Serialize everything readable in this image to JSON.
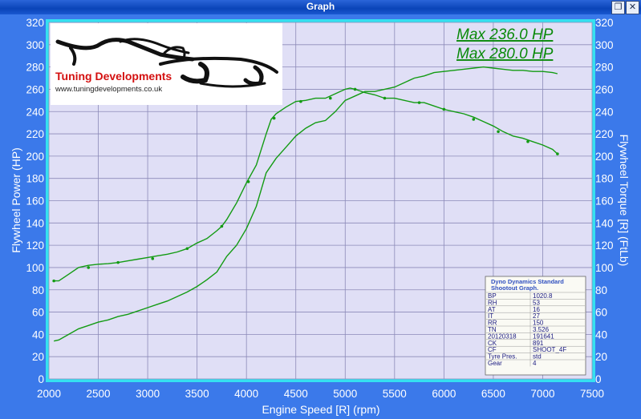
{
  "window": {
    "title": "Graph"
  },
  "logo": {
    "company": "Tuning Developments",
    "url": "www.tuningdevelopments.co.uk"
  },
  "max_labels": [
    "Max 236.0 HP",
    "Max 280.0 HP"
  ],
  "info_table": {
    "header": [
      "Dyno Dynamics Standard",
      "Shootout Graph."
    ],
    "rows": [
      [
        "BP",
        "1020.8"
      ],
      [
        "RH",
        "53"
      ],
      [
        "AT",
        "16"
      ],
      [
        "IT",
        "27"
      ],
      [
        "RR",
        "150"
      ],
      [
        "TN",
        "3.526"
      ],
      [
        "20120318",
        "191641"
      ],
      [
        "CK",
        "891"
      ],
      [
        "CF",
        "SHOOT_4F"
      ],
      [
        "Tyre Pres.",
        "std"
      ],
      [
        "Gear",
        "4"
      ]
    ]
  },
  "colors": {
    "plot_bg": "#e0dff6",
    "grid": "#8c8ab8",
    "curve": "#139b13",
    "frame": "#3b79ea"
  },
  "chart_data": {
    "type": "line",
    "xlabel": "Engine Speed [R] (rpm)",
    "ylabel": "Flywheel Power (HP)",
    "ylabel_right": "Flywheel Torque [R] (FtLb)",
    "xlim": [
      2000,
      7500
    ],
    "ylim": [
      0,
      320
    ],
    "ylim_right": [
      0,
      320
    ],
    "xticks": [
      2000,
      2500,
      3000,
      3500,
      4000,
      4500,
      5000,
      5500,
      6000,
      6500,
      7000,
      7500
    ],
    "yticks": [
      0,
      20,
      40,
      60,
      80,
      100,
      120,
      140,
      160,
      180,
      200,
      220,
      240,
      260,
      280,
      300,
      320
    ],
    "grid": true,
    "series": [
      {
        "x": [
          2050,
          2100,
          2200,
          2300,
          2400,
          2500,
          2600,
          2700,
          2800,
          2900,
          3000,
          3100,
          3200,
          3300,
          3400,
          3500,
          3600,
          3700,
          3750,
          3800,
          3900,
          4000,
          4100,
          4200,
          4250,
          4300,
          4400,
          4500,
          4600,
          4700,
          4800,
          4900,
          5000,
          5050,
          5100,
          5200,
          5300,
          5400,
          5500,
          5600,
          5700,
          5800,
          5900,
          6000,
          6100,
          6200,
          6300,
          6400,
          6500,
          6600,
          6700,
          6800,
          6900,
          7000,
          7100,
          7150
        ],
        "values": [
          88,
          88,
          94,
          100,
          102,
          103,
          103.5,
          104.5,
          106,
          107.5,
          109,
          110.5,
          112,
          114,
          117,
          122,
          126,
          133,
          137,
          143,
          158,
          176,
          192,
          220,
          233,
          238,
          244,
          249,
          250,
          252,
          252,
          256,
          260,
          261,
          260,
          257,
          255,
          252,
          252,
          250,
          248,
          248,
          245,
          242,
          240,
          238,
          235,
          231,
          227,
          222,
          218,
          216,
          213,
          210,
          206,
          202
        ]
      },
      {
        "x": [
          2050,
          2100,
          2200,
          2300,
          2400,
          2500,
          2600,
          2700,
          2800,
          2900,
          3000,
          3100,
          3200,
          3300,
          3400,
          3500,
          3600,
          3700,
          3800,
          3900,
          4000,
          4100,
          4200,
          4300,
          4400,
          4500,
          4600,
          4700,
          4800,
          4900,
          5000,
          5100,
          5200,
          5300,
          5400,
          5500,
          5600,
          5700,
          5800,
          5900,
          6000,
          6100,
          6200,
          6300,
          6400,
          6500,
          6600,
          6700,
          6800,
          6900,
          7000,
          7100,
          7150
        ],
        "values": [
          34,
          35,
          40,
          45,
          48,
          51,
          53,
          56,
          58,
          61,
          64,
          67,
          70,
          74,
          78,
          83,
          89,
          96,
          110,
          120,
          135,
          155,
          185,
          198,
          208,
          218,
          225,
          230,
          232,
          240,
          250,
          254,
          258,
          258,
          260,
          262,
          266,
          270,
          272,
          275,
          276,
          277,
          278,
          279,
          280,
          279,
          278,
          277,
          277,
          276,
          276,
          275,
          274
        ]
      }
    ],
    "markers": [
      {
        "x": [
          2050,
          2400,
          2700,
          3050,
          3400,
          3750,
          4020,
          4280,
          4550,
          4850,
          5100,
          5400,
          5750,
          6000,
          6300,
          6550,
          6850,
          7150
        ],
        "values": [
          88,
          100,
          104.5,
          108,
          117,
          137,
          177,
          234,
          249,
          252,
          260,
          252,
          248,
          242,
          233,
          222,
          213,
          202
        ]
      }
    ]
  }
}
